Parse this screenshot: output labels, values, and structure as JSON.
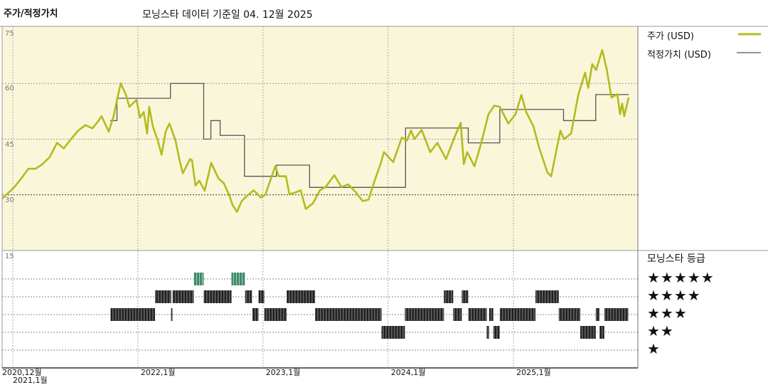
{
  "header": {
    "title": "주가/적정가치",
    "subtitle": "모닝스타 데이터 기준일 04. 12월 2025"
  },
  "legend": {
    "price": "주가 (USD)",
    "fair_value": "적정가치 (USD)",
    "rating_title": "모닝스타 등급",
    "stars": [
      "★★★★★",
      "★★★★",
      "★★★",
      "★★",
      "★"
    ]
  },
  "colors": {
    "price": "#b3bb1e",
    "fair_value": "#555555",
    "plot_bg": "#faf6da",
    "rating_5": "#3d8a6a",
    "rating_other": "#3a3a3a"
  },
  "chart_data": [
    {
      "type": "line",
      "ylim": [
        15,
        75
      ],
      "yticks": [
        "75",
        "60",
        "45",
        "30"
      ],
      "ytick_values": [
        75,
        60,
        45,
        30
      ],
      "xticks": [
        {
          "label": "2020,12월",
          "date": "2020-12-01"
        },
        {
          "label": "2021,1월",
          "date": "2021-01-01"
        },
        {
          "label": "2022,1월",
          "date": "2022-01-01"
        },
        {
          "label": "2023,1월",
          "date": "2023-01-01"
        },
        {
          "label": "2024,1월",
          "date": "2024-01-01"
        },
        {
          "label": "2025,1월",
          "date": "2025-01-01"
        }
      ],
      "grid": true,
      "series": [
        {
          "name": "주가 (USD)",
          "points": [
            [
              "2020-12-01",
              29
            ],
            [
              "2021-01-05",
              32
            ],
            [
              "2021-01-26",
              34.4
            ],
            [
              "2021-02-15",
              37
            ],
            [
              "2021-03-08",
              37
            ],
            [
              "2021-03-29",
              38.3
            ],
            [
              "2021-04-19",
              40.2
            ],
            [
              "2021-05-10",
              44
            ],
            [
              "2021-05-30",
              42.5
            ],
            [
              "2021-06-20",
              45
            ],
            [
              "2021-07-11",
              47.3
            ],
            [
              "2021-08-01",
              48.8
            ],
            [
              "2021-08-21",
              47.9
            ],
            [
              "2021-09-07",
              49.8
            ],
            [
              "2021-09-17",
              51.2
            ],
            [
              "2021-10-08",
              47
            ],
            [
              "2021-10-23",
              51.5
            ],
            [
              "2021-11-02",
              56
            ],
            [
              "2021-11-12",
              60
            ],
            [
              "2021-11-27",
              57
            ],
            [
              "2021-12-07",
              53.7
            ],
            [
              "2021-12-28",
              55.6
            ],
            [
              "2022-01-07",
              50.8
            ],
            [
              "2022-01-18",
              52.3
            ],
            [
              "2022-01-28",
              46.5
            ],
            [
              "2022-02-03",
              53.7
            ],
            [
              "2022-02-14",
              48.3
            ],
            [
              "2022-02-28",
              44.6
            ],
            [
              "2022-03-11",
              40.8
            ],
            [
              "2022-03-23",
              47
            ],
            [
              "2022-04-03",
              49.2
            ],
            [
              "2022-04-21",
              44.6
            ],
            [
              "2022-05-02",
              39.6
            ],
            [
              "2022-05-12",
              35.8
            ],
            [
              "2022-06-02",
              39.6
            ],
            [
              "2022-06-08",
              39.3
            ],
            [
              "2022-06-18",
              32.5
            ],
            [
              "2022-06-29",
              33.8
            ],
            [
              "2022-07-15",
              31.1
            ],
            [
              "2022-08-03",
              38.6
            ],
            [
              "2022-08-24",
              34.4
            ],
            [
              "2022-09-09",
              33.1
            ],
            [
              "2022-09-24",
              30
            ],
            [
              "2022-10-04",
              27.3
            ],
            [
              "2022-10-17",
              25.4
            ],
            [
              "2022-10-31",
              28.3
            ],
            [
              "2022-11-15",
              29.7
            ],
            [
              "2022-12-05",
              31.2
            ],
            [
              "2022-12-26",
              29.3
            ],
            [
              "2023-01-08",
              30
            ],
            [
              "2023-01-22",
              33.8
            ],
            [
              "2023-02-06",
              37.7
            ],
            [
              "2023-02-16",
              35
            ],
            [
              "2023-03-09",
              35
            ],
            [
              "2023-03-19",
              30.2
            ],
            [
              "2023-04-05",
              30.6
            ],
            [
              "2023-04-21",
              31.2
            ],
            [
              "2023-05-06",
              26.2
            ],
            [
              "2023-05-27",
              27.7
            ],
            [
              "2023-06-16",
              31.2
            ],
            [
              "2023-07-03",
              32.1
            ],
            [
              "2023-07-28",
              35.3
            ],
            [
              "2023-08-18",
              32.1
            ],
            [
              "2023-09-07",
              32.8
            ],
            [
              "2023-09-28",
              30.8
            ],
            [
              "2023-10-19",
              28.3
            ],
            [
              "2023-11-05",
              28.7
            ],
            [
              "2023-11-25",
              34.4
            ],
            [
              "2023-12-10",
              38.3
            ],
            [
              "2023-12-20",
              41.5
            ],
            [
              "2024-01-16",
              38.8
            ],
            [
              "2024-02-10",
              45.4
            ],
            [
              "2024-02-25",
              44.6
            ],
            [
              "2024-03-08",
              47.3
            ],
            [
              "2024-03-18",
              45
            ],
            [
              "2024-04-08",
              47.5
            ],
            [
              "2024-05-03",
              41.5
            ],
            [
              "2024-05-24",
              44
            ],
            [
              "2024-06-18",
              39.6
            ],
            [
              "2024-07-15",
              46
            ],
            [
              "2024-07-31",
              49.4
            ],
            [
              "2024-08-09",
              38.3
            ],
            [
              "2024-08-19",
              41.5
            ],
            [
              "2024-09-09",
              37.7
            ],
            [
              "2024-09-29",
              44
            ],
            [
              "2024-10-20",
              51.7
            ],
            [
              "2024-11-06",
              54
            ],
            [
              "2024-11-22",
              53.7
            ],
            [
              "2024-12-17",
              49.2
            ],
            [
              "2025-01-07",
              51.7
            ],
            [
              "2025-01-24",
              56.9
            ],
            [
              "2025-02-07",
              52.3
            ],
            [
              "2025-02-28",
              48.5
            ],
            [
              "2025-03-17",
              42.7
            ],
            [
              "2025-04-10",
              36
            ],
            [
              "2025-04-21",
              35
            ],
            [
              "2025-05-01",
              39.6
            ],
            [
              "2025-05-18",
              47.3
            ],
            [
              "2025-05-28",
              45
            ],
            [
              "2025-06-18",
              46.5
            ],
            [
              "2025-07-09",
              56.9
            ],
            [
              "2025-07-29",
              62.9
            ],
            [
              "2025-08-07",
              58.8
            ],
            [
              "2025-08-19",
              65.2
            ],
            [
              "2025-08-30",
              63.6
            ],
            [
              "2025-09-17",
              69
            ],
            [
              "2025-09-30",
              63.8
            ],
            [
              "2025-10-14",
              56.2
            ],
            [
              "2025-10-31",
              57.1
            ],
            [
              "2025-11-08",
              51.7
            ],
            [
              "2025-11-14",
              54.6
            ],
            [
              "2025-11-20",
              51.2
            ],
            [
              "2025-12-03",
              56.2
            ]
          ]
        },
        {
          "name": "적정가치 (USD)",
          "step": true,
          "end": "2025-12-03",
          "points": [
            [
              "2021-10-12",
              50
            ],
            [
              "2021-11-01",
              56
            ],
            [
              "2022-04-06",
              60
            ],
            [
              "2022-07-12",
              45
            ],
            [
              "2022-08-02",
              50
            ],
            [
              "2022-08-29",
              46
            ],
            [
              "2022-11-08",
              35
            ],
            [
              "2023-02-09",
              38
            ],
            [
              "2023-05-17",
              32
            ],
            [
              "2024-02-21",
              48
            ],
            [
              "2024-08-22",
              44
            ],
            [
              "2024-11-22",
              53
            ],
            [
              "2025-05-27",
              50
            ],
            [
              "2025-08-29",
              57
            ]
          ]
        }
      ]
    },
    {
      "type": "rating-timeline",
      "ytick": "15",
      "periods": [
        [
          "2021-10-13",
          "2022-02-20",
          3
        ],
        [
          "2022-02-20",
          "2022-04-08",
          4
        ],
        [
          "2022-04-08",
          "2022-04-12",
          3
        ],
        [
          "2022-04-12",
          "2022-06-13",
          4
        ],
        [
          "2022-06-13",
          "2022-07-12",
          5
        ],
        [
          "2022-07-12",
          "2022-10-01",
          4
        ],
        [
          "2022-10-01",
          "2022-11-10",
          5
        ],
        [
          "2022-11-10",
          "2022-11-30",
          4
        ],
        [
          "2022-12-01",
          "2022-12-19",
          3
        ],
        [
          "2022-12-19",
          "2023-01-05",
          4
        ],
        [
          "2023-01-05",
          "2023-03-11",
          3
        ],
        [
          "2023-03-11",
          "2023-06-02",
          4
        ],
        [
          "2023-06-02",
          "2023-12-13",
          3
        ],
        [
          "2023-12-13",
          "2024-02-19",
          2
        ],
        [
          "2024-02-19",
          "2024-06-12",
          3
        ],
        [
          "2024-06-12",
          "2024-07-09",
          4
        ],
        [
          "2024-07-09",
          "2024-08-03",
          3
        ],
        [
          "2024-08-03",
          "2024-08-22",
          4
        ],
        [
          "2024-08-22",
          "2024-10-15",
          3
        ],
        [
          "2024-10-15",
          "2024-10-22",
          2
        ],
        [
          "2024-10-22",
          "2024-11-03",
          3
        ],
        [
          "2024-11-03",
          "2024-11-22",
          2
        ],
        [
          "2024-11-22",
          "2025-03-06",
          3
        ],
        [
          "2025-03-06",
          "2025-05-13",
          4
        ],
        [
          "2025-05-13",
          "2025-07-15",
          3
        ],
        [
          "2025-07-15",
          "2025-08-29",
          2
        ],
        [
          "2025-08-29",
          "2025-09-09",
          3
        ],
        [
          "2025-09-09",
          "2025-09-23",
          2
        ],
        [
          "2025-09-23",
          "2025-12-02",
          3
        ]
      ]
    }
  ]
}
